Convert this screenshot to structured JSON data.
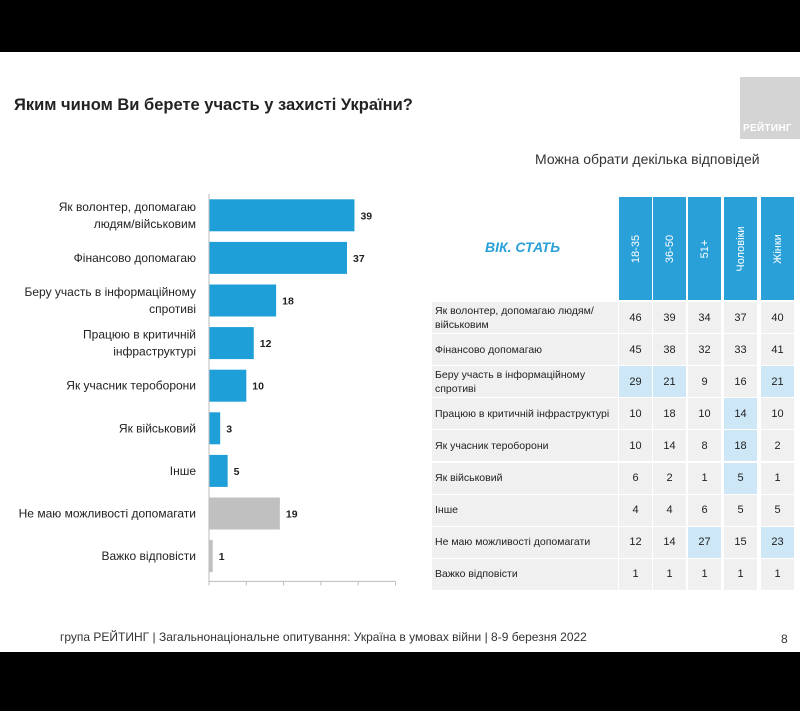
{
  "title": "Яким чином Ви берете участь у захисті України?",
  "logo_text": "РЕЙТИНГ",
  "subtitle": "Можна обрати декілька відповідей",
  "footer": "група РЕЙТИНГ | Загальнонаціональне опитування: Україна в умовах війни | 8-9 березня 2022",
  "page_number": "8",
  "colors": {
    "accent": "#1f9fd8",
    "grey_bar": "#c0c0c0",
    "highlight": "#cde7f7",
    "row_bg": "#f0f0f0"
  },
  "chart_data": {
    "type": "bar",
    "orientation": "horizontal",
    "categories": [
      [
        "Як волонтер, допомагаю",
        "людям/військовим"
      ],
      [
        "Фінансово допомагаю"
      ],
      [
        "Беру участь в інформаційному",
        "спротиві"
      ],
      [
        "Працюю в критичній",
        "інфраструктурі"
      ],
      [
        "Як учасник тероборони"
      ],
      [
        "Як військовий"
      ],
      [
        "Інше"
      ],
      [
        "Не маю можливості допомагати"
      ],
      [
        "Важко відповісти"
      ]
    ],
    "values": [
      39,
      37,
      18,
      12,
      10,
      3,
      5,
      19,
      1
    ],
    "bar_colors": [
      "accent",
      "accent",
      "accent",
      "accent",
      "accent",
      "accent",
      "accent",
      "grey",
      "grey"
    ],
    "xlim": [
      0,
      50
    ]
  },
  "table": {
    "header_label": "ВІК. СТАТЬ",
    "columns": [
      "18-35",
      "36-50",
      "51+",
      "Чоловіки",
      "Жінки"
    ],
    "rows": [
      {
        "label": "Як волонтер, допомагаю людям/військовим",
        "values": [
          "46",
          "39",
          "34",
          "37",
          "40"
        ],
        "highlight": [
          0,
          0,
          0,
          0,
          0
        ]
      },
      {
        "label": "Фінансово допомагаю",
        "values": [
          "45",
          "38",
          "32",
          "33",
          "41"
        ],
        "highlight": [
          0,
          0,
          0,
          0,
          0
        ]
      },
      {
        "label": "Беру участь в інформаційному спротиві",
        "values": [
          "29",
          "21",
          "9",
          "16",
          "21"
        ],
        "highlight": [
          1,
          1,
          0,
          0,
          1
        ]
      },
      {
        "label": "Працюю в критичній інфраструктурі",
        "values": [
          "10",
          "18",
          "10",
          "14",
          "10"
        ],
        "highlight": [
          0,
          0,
          0,
          1,
          0
        ]
      },
      {
        "label": "Як учасник тероборони",
        "values": [
          "10",
          "14",
          "8",
          "18",
          "2"
        ],
        "highlight": [
          0,
          0,
          0,
          1,
          0
        ]
      },
      {
        "label": "Як військовий",
        "values": [
          "6",
          "2",
          "1",
          "5",
          "1"
        ],
        "highlight": [
          0,
          0,
          0,
          1,
          0
        ]
      },
      {
        "label": "Інше",
        "values": [
          "4",
          "4",
          "6",
          "5",
          "5"
        ],
        "highlight": [
          0,
          0,
          0,
          0,
          0
        ]
      },
      {
        "label": "Не маю можливості допомагати",
        "values": [
          "12",
          "14",
          "27",
          "15",
          "23"
        ],
        "highlight": [
          0,
          0,
          1,
          0,
          1
        ]
      },
      {
        "label": "Важко відповісти",
        "values": [
          "1",
          "1",
          "1",
          "1",
          "1"
        ],
        "highlight": [
          0,
          0,
          0,
          0,
          0
        ]
      }
    ]
  }
}
